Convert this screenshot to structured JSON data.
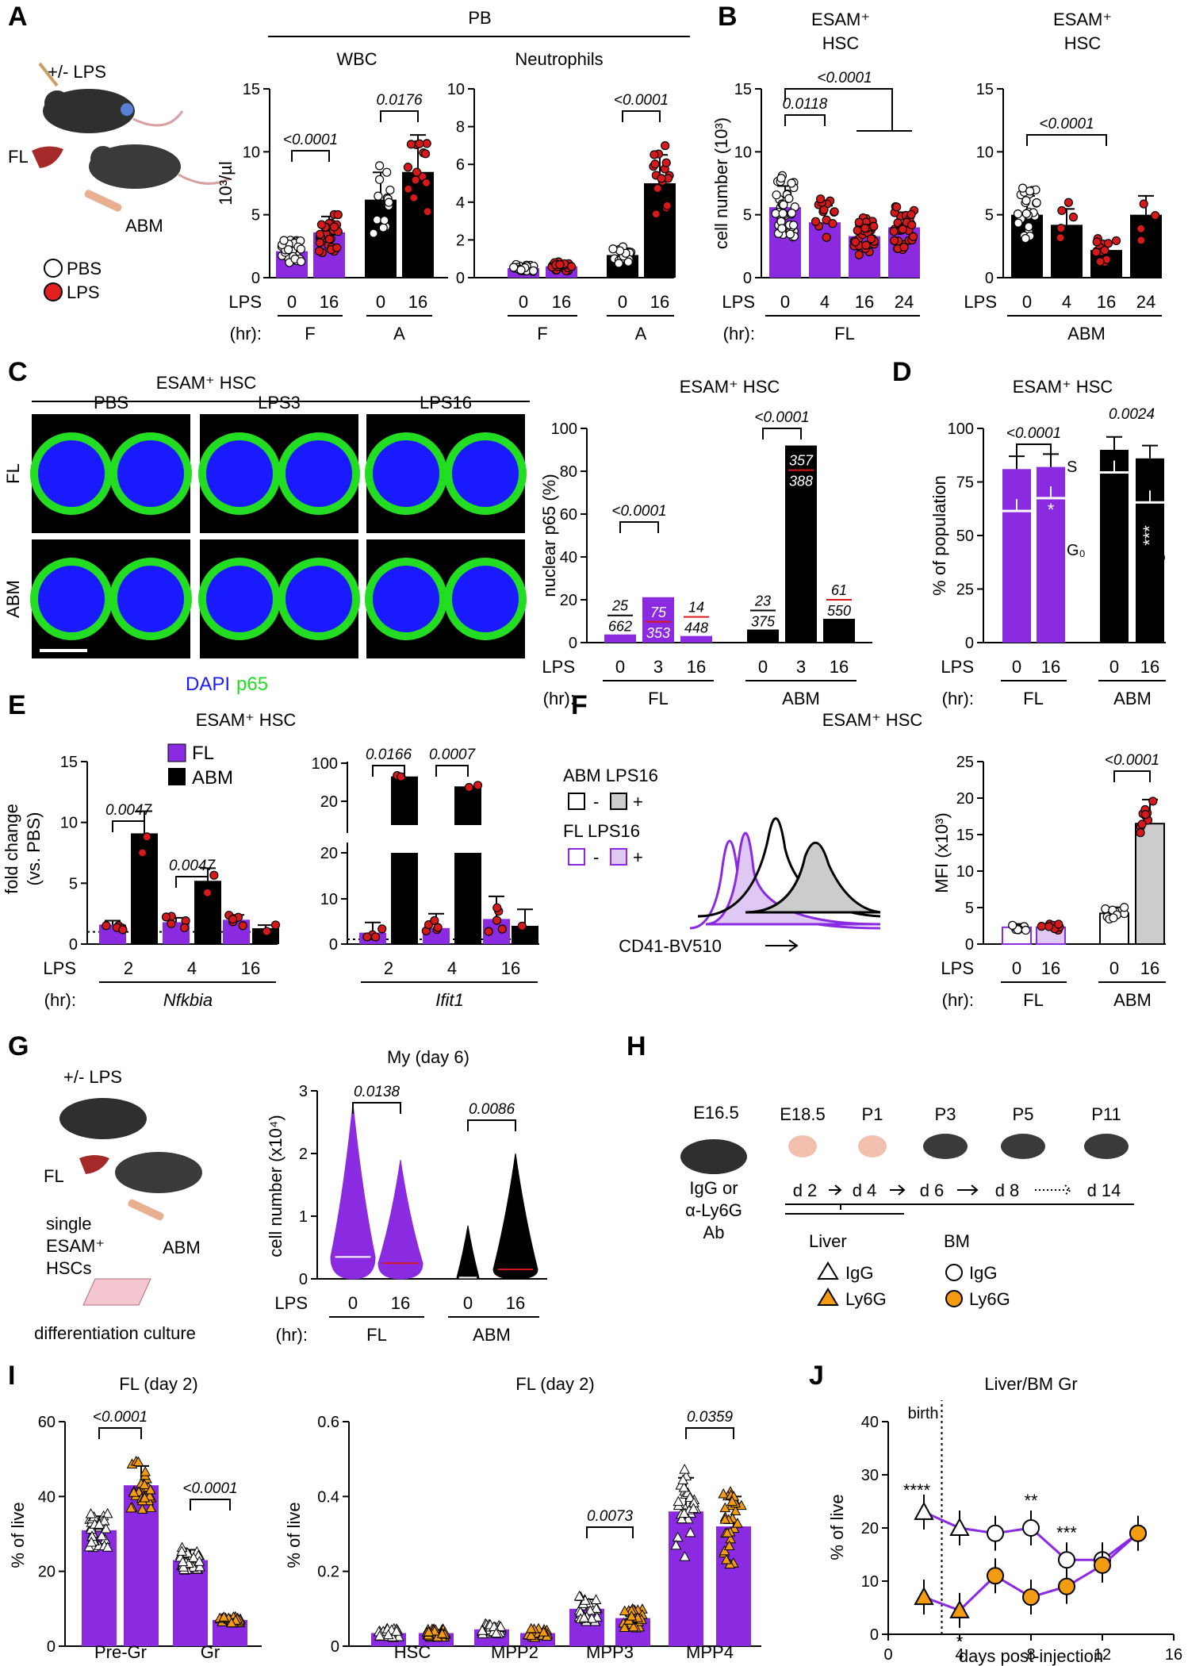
{
  "panel_letters": [
    "A",
    "B",
    "C",
    "D",
    "E",
    "F",
    "G",
    "H",
    "I",
    "J"
  ],
  "colors": {
    "FL": "#8a2be2",
    "ABM": "#000000",
    "LPS_dot": "#d7191c",
    "PBS_dot": "#ffffff",
    "Ly6G": "#f39c12",
    "IgG": "#ffffff",
    "DAPI": "#1a1aff",
    "p65": "#22dd22"
  },
  "panelA": {
    "schematic": {
      "treatment": "+/- LPS",
      "fl": "FL",
      "abm": "ABM",
      "legend_pbs": "PBS",
      "legend_lps": "LPS"
    },
    "header": "PB",
    "lps_axis_label": "LPS",
    "hr_axis_label": "(hr):",
    "charts": [
      {
        "title": "WBC",
        "ylabel": "10³/µl",
        "ylim": [
          0,
          15
        ],
        "yticks": [
          "0",
          "5",
          "10",
          "15"
        ],
        "lps_ticks": [
          "0",
          "16",
          "0",
          "16"
        ],
        "groups": [
          "F",
          "A"
        ],
        "pvalues": [
          {
            "text": "<0.0001"
          },
          {
            "text": "0.0176"
          }
        ]
      },
      {
        "title": "Neutrophils",
        "ylabel": "",
        "ylim": [
          0,
          10
        ],
        "yticks": [
          "0",
          "2",
          "4",
          "6",
          "8",
          "10"
        ],
        "lps_ticks": [
          "0",
          "16",
          "0",
          "16"
        ],
        "groups": [
          "F",
          "A"
        ],
        "pvalues": [
          {
            "text": "<0.0001"
          }
        ]
      }
    ]
  },
  "panelB": {
    "ylabel": "cell number (10³)",
    "charts": [
      {
        "title_line1": "ESAM⁺",
        "title_line2": "HSC",
        "ylim": [
          0,
          15
        ],
        "yticks": [
          "0",
          "5",
          "10",
          "15"
        ],
        "lps_ticks": [
          "0",
          "4",
          "16",
          "24"
        ],
        "group": "FL",
        "pvalues": [
          {
            "text": "<0.0001"
          },
          {
            "text": "0.0118"
          }
        ]
      },
      {
        "title_line1": "ESAM⁺",
        "title_line2": "HSC",
        "ylim": [
          0,
          15
        ],
        "yticks": [
          "0",
          "5",
          "10",
          "15"
        ],
        "lps_ticks": [
          "0",
          "4",
          "16",
          "24"
        ],
        "group": "ABM",
        "pvalues": [
          {
            "text": "<0.0001"
          }
        ]
      }
    ]
  },
  "panelC": {
    "header": "ESAM⁺ HSC",
    "columns": [
      "PBS",
      "LPS3",
      "LPS16"
    ],
    "rows": [
      "FL",
      "ABM"
    ],
    "legend_dapi": "DAPI",
    "legend_p65": "p65",
    "chart": {
      "title": "ESAM⁺ HSC",
      "ylabel": "nuclear p65 (%)",
      "yticks": [
        "0",
        "20",
        "40",
        "60",
        "80",
        "100"
      ],
      "lps_ticks": [
        "0",
        "3",
        "16",
        "0",
        "3",
        "16"
      ],
      "groups": [
        "FL",
        "ABM"
      ],
      "fractions": [
        {
          "num": "25",
          "den": "662"
        },
        {
          "num": "75",
          "den": "353"
        },
        {
          "num": "14",
          "den": "448"
        },
        {
          "num": "23",
          "den": "375"
        },
        {
          "num": "357",
          "den": "388"
        },
        {
          "num": "61",
          "den": "550"
        }
      ],
      "pvalues": [
        {
          "text": "<0.0001"
        },
        {
          "text": "<0.0001"
        }
      ]
    }
  },
  "panelD": {
    "title": "ESAM⁺ HSC",
    "ylabel": "% of population",
    "yticks": [
      "0",
      "25",
      "50",
      "75",
      "100"
    ],
    "lps_ticks": [
      "0",
      "16",
      "0",
      "16"
    ],
    "groups": [
      "FL",
      "ABM"
    ],
    "label_s": "S",
    "label_g0": "G₀",
    "pvalues": [
      {
        "text": "<0.0001"
      },
      {
        "text": "0.0024"
      }
    ],
    "sig_fl": "*",
    "sig_abm": "***"
  },
  "panelE": {
    "title": "ESAM⁺ HSC",
    "ylabel1": "fold change",
    "ylabel2": "(vs. PBS)",
    "legend": [
      {
        "label": "FL"
      },
      {
        "label": "ABM"
      }
    ],
    "charts": [
      {
        "gene": "Nfkbia",
        "yticks": [
          "0",
          "5",
          "10",
          "15"
        ],
        "lps_ticks": [
          "2",
          "4",
          "16"
        ],
        "pvalues": [
          {
            "text": "0.0047"
          },
          {
            "text": "0.0047"
          }
        ]
      },
      {
        "gene": "Ifit1",
        "yticks": [
          "0",
          "10",
          "20",
          "20",
          "100"
        ],
        "lps_ticks": [
          "2",
          "4",
          "16"
        ],
        "pvalues": [
          {
            "text": "0.0166"
          },
          {
            "text": "0.0007"
          }
        ]
      }
    ]
  },
  "panelF": {
    "title": "ESAM⁺ HSC",
    "hist_legend": [
      {
        "label": "ABM LPS16"
      },
      {
        "label": "FL LPS16"
      }
    ],
    "sign_minus": "-",
    "sign_plus": "+",
    "hist_xlabel": "CD41-BV510",
    "chart": {
      "ylabel": "MFI (x10³)",
      "yticks": [
        "0",
        "5",
        "10",
        "15",
        "20",
        "25"
      ],
      "lps_ticks": [
        "0",
        "16",
        "0",
        "16"
      ],
      "groups": [
        "FL",
        "ABM"
      ],
      "pvalues": [
        {
          "text": "<0.0001"
        }
      ]
    }
  },
  "panelG": {
    "schematic": {
      "treatment": "+/- LPS",
      "fl": "FL",
      "abm": "ABM",
      "single": "single",
      "esam": "ESAM⁺",
      "hscs": "HSCs",
      "culture": "differentiation culture"
    },
    "chart": {
      "title": "My (day 6)",
      "ylabel": "cell number (x10⁴)",
      "yticks": [
        "0",
        "1",
        "2",
        "3"
      ],
      "lps_ticks": [
        "0",
        "16",
        "0",
        "16"
      ],
      "groups": [
        "FL",
        "ABM"
      ],
      "pvalues": [
        {
          "text": "0.0138"
        },
        {
          "text": "0.0086"
        }
      ]
    }
  },
  "panelH": {
    "stages": [
      "E16.5",
      "E18.5",
      "P1",
      "P3",
      "P5",
      "P11"
    ],
    "injection": [
      "IgG or",
      "α-Ly6G",
      "Ab"
    ],
    "days": [
      "d 2",
      "d 4",
      "d 6",
      "d 8",
      "d 14"
    ],
    "liver": "Liver",
    "bm": "BM",
    "legend": [
      {
        "label": "IgG"
      },
      {
        "label": "Ly6G"
      },
      {
        "label": "IgG"
      },
      {
        "label": "Ly6G"
      }
    ]
  },
  "panelI": {
    "charts": [
      {
        "title": "FL (day 2)",
        "ylabel": "% of live",
        "yticks": [
          "0",
          "20",
          "40",
          "60"
        ],
        "categories": [
          "Pre-Gr",
          "Gr"
        ],
        "pvalues": [
          {
            "text": "<0.0001"
          },
          {
            "text": "<0.0001"
          }
        ]
      },
      {
        "title": "FL (day 2)",
        "ylabel": "% of live",
        "yticks": [
          "0",
          "0.2",
          "0.4",
          "0.6"
        ],
        "categories": [
          "HSC",
          "MPP2",
          "MPP3",
          "MPP4"
        ],
        "pvalues": [
          {
            "text": "0.0073"
          },
          {
            "text": "0.0359"
          }
        ]
      }
    ]
  },
  "panelJ": {
    "title": "Liver/BM Gr",
    "ylabel": "% of live",
    "xlabel": "days post-injection",
    "birth": "birth",
    "yticks": [
      "0",
      "10",
      "20",
      "30",
      "40"
    ],
    "xticks": [
      "0",
      "4",
      "8",
      "12",
      "16"
    ],
    "sig": [
      {
        "text": "****"
      },
      {
        "text": "*"
      },
      {
        "text": "**"
      },
      {
        "text": "***"
      }
    ]
  },
  "chart_data": [
    {
      "id": "A-WBC",
      "type": "bar",
      "title": "WBC",
      "ylabel": "10³/µl",
      "ylim": [
        0,
        15
      ],
      "categories": [
        "F 0",
        "F 16",
        "A 0",
        "A 16"
      ],
      "values": [
        2.1,
        3.6,
        6.2,
        8.4
      ]
    },
    {
      "id": "A-Neutrophils",
      "type": "bar",
      "title": "Neutrophils",
      "ylim": [
        0,
        10
      ],
      "categories": [
        "F 0",
        "F 16",
        "A 0",
        "A 16"
      ],
      "values": [
        0.5,
        0.6,
        1.2,
        5.0
      ]
    },
    {
      "id": "B-FL",
      "type": "bar",
      "title": "ESAM⁺ HSC",
      "ylabel": "cell number (10³)",
      "ylim": [
        0,
        15
      ],
      "categories": [
        "0",
        "4",
        "16",
        "24"
      ],
      "values": [
        5.6,
        4.4,
        3.3,
        4.0
      ]
    },
    {
      "id": "B-ABM",
      "type": "bar",
      "title": "ESAM⁺ HSC",
      "ylim": [
        0,
        15
      ],
      "categories": [
        "0",
        "4",
        "16",
        "24"
      ],
      "values": [
        5.0,
        4.2,
        2.2,
        5.0
      ]
    },
    {
      "id": "C-p65",
      "type": "bar",
      "title": "ESAM⁺ HSC",
      "ylabel": "nuclear p65 (%)",
      "ylim": [
        0,
        100
      ],
      "categories": [
        "FL 0",
        "FL 3",
        "FL 16",
        "ABM 0",
        "ABM 3",
        "ABM 16"
      ],
      "values": [
        3.8,
        21.2,
        3.1,
        6.1,
        92.0,
        11.1
      ]
    },
    {
      "id": "D-cycle",
      "type": "bar",
      "title": "ESAM⁺ HSC",
      "ylabel": "% of population",
      "ylim": [
        0,
        100
      ],
      "categories": [
        "FL 0",
        "FL 16",
        "ABM 0",
        "ABM 16"
      ],
      "series": [
        {
          "name": "G₀",
          "values": [
            62,
            68,
            80,
            66
          ]
        },
        {
          "name": "S",
          "values": [
            81,
            82,
            90,
            86
          ]
        }
      ]
    },
    {
      "id": "E-Nfkbia",
      "type": "bar",
      "title": "Nfkbia",
      "ylabel": "fold change (vs. PBS)",
      "ylim": [
        0,
        15
      ],
      "categories": [
        "2",
        "4",
        "16"
      ],
      "series": [
        {
          "name": "FL",
          "values": [
            1.6,
            1.8,
            2.0
          ]
        },
        {
          "name": "ABM",
          "values": [
            9.1,
            5.2,
            1.3
          ]
        }
      ]
    },
    {
      "id": "E-Ifit1",
      "type": "bar",
      "title": "Ifit1",
      "ylim": [
        0,
        100
      ],
      "categories": [
        "2",
        "4",
        "16"
      ],
      "series": [
        {
          "name": "FL",
          "values": [
            2.5,
            3.5,
            5.5
          ]
        },
        {
          "name": "ABM",
          "values": [
            70,
            50,
            4
          ]
        }
      ]
    },
    {
      "id": "F-MFI",
      "type": "bar",
      "ylabel": "MFI (x10³)",
      "ylim": [
        0,
        25
      ],
      "categories": [
        "FL 0",
        "FL 16",
        "ABM 0",
        "ABM 16"
      ],
      "values": [
        2.3,
        2.3,
        4.2,
        16.5
      ]
    },
    {
      "id": "G-My",
      "type": "violin",
      "title": "My (day 6)",
      "ylabel": "cell number (x10⁴)",
      "ylim": [
        0,
        3
      ],
      "categories": [
        "FL 0",
        "FL 16",
        "ABM 0",
        "ABM 16"
      ],
      "medians": [
        0.35,
        0.25,
        0.02,
        0.15
      ],
      "maxima": [
        2.8,
        1.9,
        0.85,
        2.0
      ]
    },
    {
      "id": "I-Gr",
      "type": "bar",
      "title": "FL (day 2)",
      "ylabel": "% of live",
      "ylim": [
        0,
        60
      ],
      "categories": [
        "Pre-Gr",
        "Gr"
      ],
      "series": [
        {
          "name": "IgG",
          "values": [
            31,
            23
          ]
        },
        {
          "name": "Ly6G",
          "values": [
            43,
            7
          ]
        }
      ]
    },
    {
      "id": "I-HSPC",
      "type": "bar",
      "title": "FL (day 2)",
      "ylabel": "% of live",
      "ylim": [
        0,
        0.6
      ],
      "categories": [
        "HSC",
        "MPP2",
        "MPP3",
        "MPP4"
      ],
      "series": [
        {
          "name": "IgG",
          "values": [
            0.035,
            0.045,
            0.1,
            0.36
          ]
        },
        {
          "name": "Ly6G",
          "values": [
            0.035,
            0.035,
            0.075,
            0.32
          ]
        }
      ]
    },
    {
      "id": "J-Gr",
      "type": "line",
      "title": "Liver/BM Gr",
      "xlabel": "days post-injection",
      "ylabel": "% of live",
      "xlim": [
        0,
        16
      ],
      "ylim": [
        0,
        40
      ],
      "series": [
        {
          "name": "IgG",
          "x": [
            2,
            4,
            6,
            8,
            10,
            12,
            14
          ],
          "y": [
            23,
            20,
            19,
            20,
            14,
            14,
            19
          ]
        },
        {
          "name": "Ly6G",
          "x": [
            2,
            4,
            6,
            8,
            10,
            12,
            14
          ],
          "y": [
            7,
            4.5,
            11,
            7,
            9,
            13,
            19
          ]
        }
      ]
    }
  ]
}
